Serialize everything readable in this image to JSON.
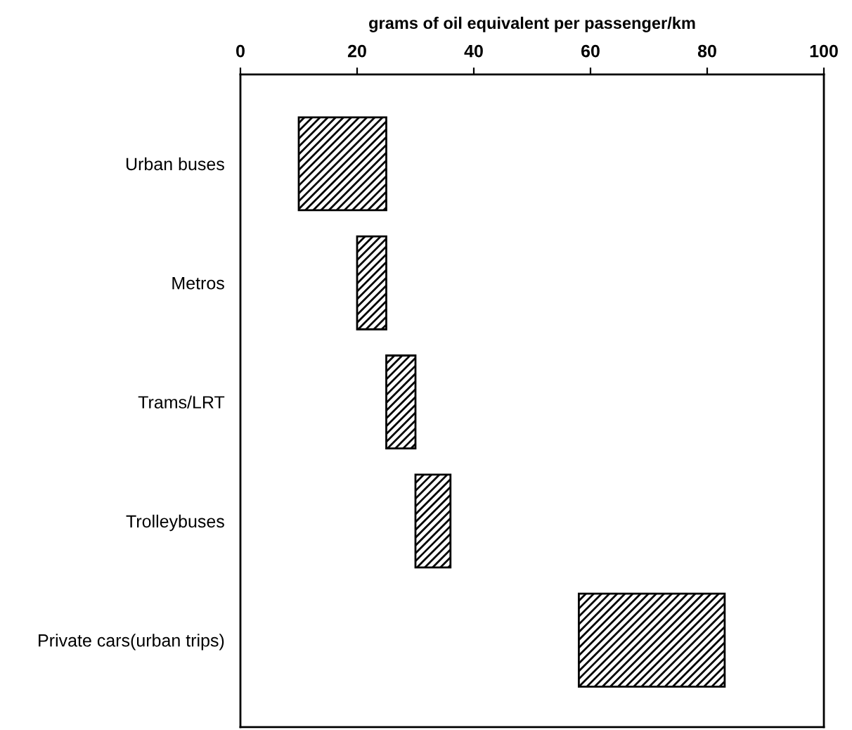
{
  "chart_data": {
    "type": "bar",
    "orientation": "horizontal",
    "xlabel": "grams of oil equivalent per passenger/km",
    "categories": [
      "Urban buses",
      "Metros",
      "Trams/LRT",
      "Trolleybuses",
      "Private cars(urban trips)"
    ],
    "base": [
      10,
      20,
      25,
      30,
      58
    ],
    "values": [
      15,
      5,
      5,
      6,
      25
    ],
    "color": "#000000",
    "xlim": [
      0,
      100
    ],
    "xticks": [
      0,
      20,
      40,
      60,
      80,
      100
    ],
    "grid": false,
    "legend": false
  }
}
